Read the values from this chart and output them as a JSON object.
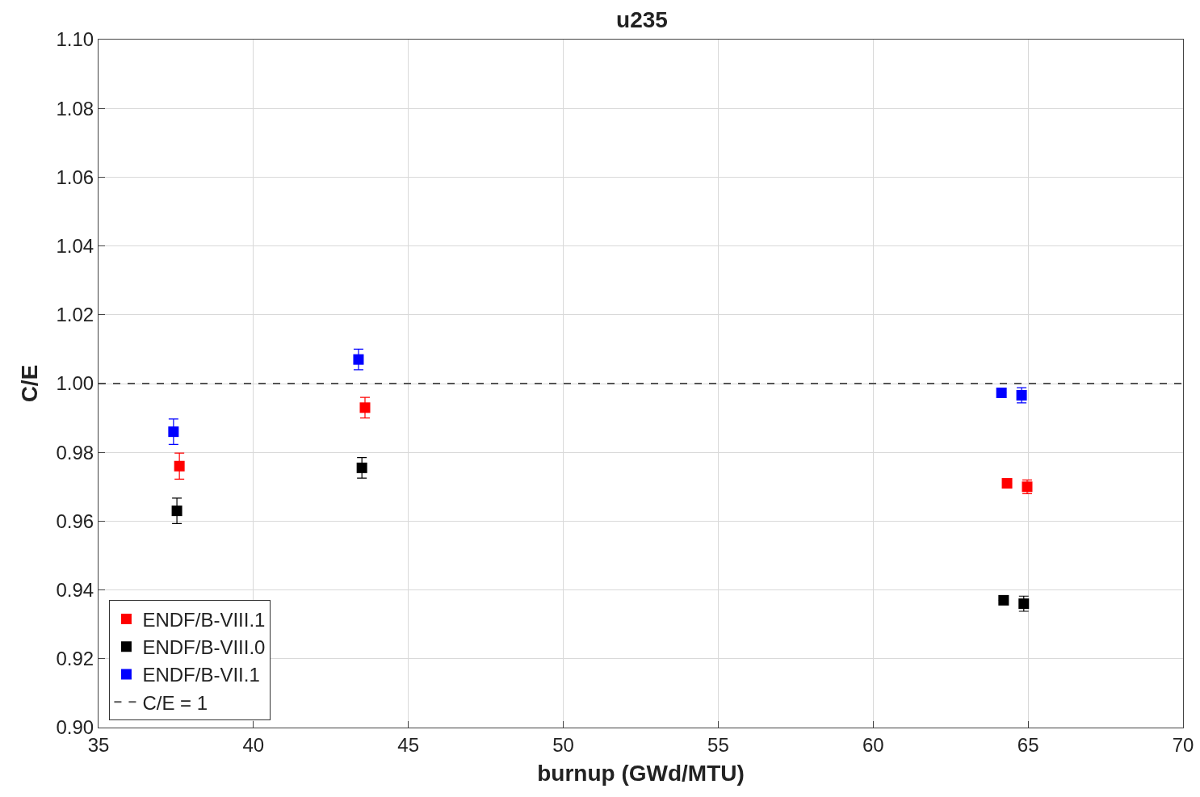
{
  "chart_data": {
    "type": "scatter",
    "title": "u235",
    "xlabel": "burnup (GWd/MTU)",
    "ylabel": "C/E",
    "xlim": [
      35,
      70
    ],
    "xticks": [
      35,
      40,
      45,
      50,
      55,
      60,
      65,
      70
    ],
    "ylim": [
      0.9,
      1.1
    ],
    "yticks": [
      {
        "value": 0.9,
        "label": "0.90"
      },
      {
        "value": 0.92,
        "label": "0.92"
      },
      {
        "value": 0.94,
        "label": "0.94"
      },
      {
        "value": 0.96,
        "label": "0.96"
      },
      {
        "value": 0.98,
        "label": "0.98"
      },
      {
        "value": 1.0,
        "label": "1.00"
      },
      {
        "value": 1.02,
        "label": "1.02"
      },
      {
        "value": 1.04,
        "label": "1.04"
      },
      {
        "value": 1.06,
        "label": "1.06"
      },
      {
        "value": 1.08,
        "label": "1.08"
      },
      {
        "value": 1.1,
        "label": "1.10"
      }
    ],
    "grid": true,
    "legend": "bottom left",
    "marker": "square",
    "series": [
      {
        "name": "ENDF/B-VIII.1",
        "color": "#ff0000",
        "x": [
          37.61,
          43.6,
          64.32,
          64.97
        ],
        "values": [
          0.976,
          0.993,
          0.971,
          0.97
        ],
        "errors": [
          0.0038,
          0.003,
          null,
          0.002
        ]
      },
      {
        "name": "ENDF/B-VIII.0",
        "color": "#000000",
        "x": [
          37.53,
          43.5,
          64.21,
          64.86
        ],
        "values": [
          0.963,
          0.9755,
          0.937,
          0.936
        ],
        "errors": [
          0.0037,
          0.003,
          null,
          0.0022
        ]
      },
      {
        "name": "ENDF/B-VII.1",
        "color": "#0000ff",
        "x": [
          37.42,
          43.39,
          64.14,
          64.79
        ],
        "values": [
          0.986,
          1.007,
          0.9973,
          0.9966
        ],
        "errors": [
          0.0037,
          0.003,
          null,
          0.0022
        ]
      }
    ],
    "ref_lines": [
      {
        "axis": "y",
        "value": 1.0,
        "label": "C/E = 1",
        "color": "#555555",
        "line_style": "dashed"
      }
    ]
  }
}
